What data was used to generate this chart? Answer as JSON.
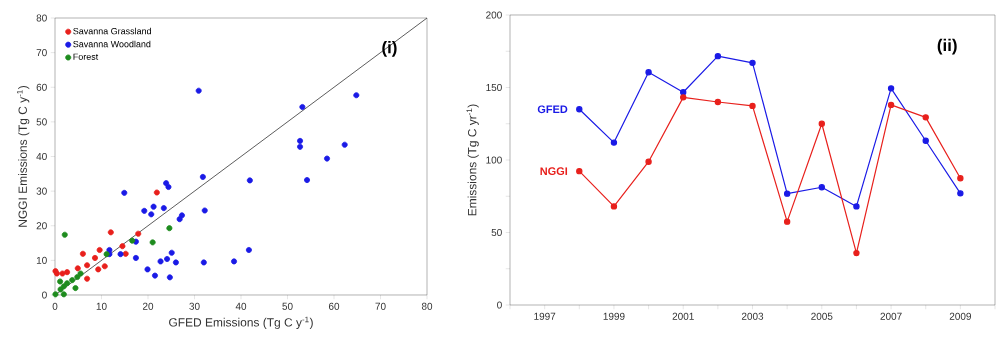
{
  "chart_data": [
    {
      "type": "scatter",
      "xlabel": "GFED Emissions (Tg C y$^{-1}$)",
      "ylabel": "NGGI Emissions (Tg C y$^{-1}$)",
      "annotations": [
        "(i)"
      ],
      "xlim": [
        0,
        80
      ],
      "ylim": [
        0,
        80
      ],
      "xticks": [
        0,
        10,
        20,
        30,
        40,
        50,
        60,
        70,
        80
      ],
      "yticks": [
        0,
        10,
        20,
        30,
        40,
        50,
        60,
        70,
        80
      ],
      "legend": "top left",
      "marker": "circle",
      "series": [
        {
          "name": "Savanna Grassland",
          "color": "#e8201c",
          "x": [
            0.1,
            1.6,
            2.6,
            0.4,
            4.9,
            6.0,
            6.9,
            6.9,
            8.6,
            9.6,
            9.3,
            10.7,
            12.0,
            14.5,
            15.2,
            17.9,
            21.9
          ],
          "values": [
            6.9,
            6.2,
            6.6,
            6.2,
            7.7,
            11.9,
            8.6,
            4.7,
            10.7,
            13.0,
            7.4,
            8.3,
            18.1,
            14.1,
            11.9,
            17.7,
            29.6
          ]
        },
        {
          "name": "Savanna Woodland",
          "color": "#1a1ae6",
          "x": [
            30.9,
            64.8,
            53.2,
            52.7,
            52.7,
            62.3,
            58.5,
            54.2,
            41.9,
            31.8,
            23.9,
            24.4,
            14.9,
            21.2,
            23.4,
            19.2,
            20.7,
            32.2,
            27.3,
            26.8,
            11.7,
            11.7,
            14.1,
            17.4,
            17.4,
            19.9,
            21.5,
            24.7,
            22.7,
            24.1,
            25.1,
            26.0,
            32.0,
            38.5,
            41.7
          ],
          "values": [
            59.0,
            57.7,
            54.3,
            44.5,
            42.8,
            43.4,
            39.4,
            33.2,
            33.1,
            34.1,
            32.3,
            31.2,
            29.5,
            25.5,
            25.1,
            24.3,
            23.3,
            24.4,
            23.0,
            21.9,
            13.0,
            11.8,
            11.8,
            15.4,
            10.7,
            7.4,
            5.6,
            5.1,
            9.7,
            10.4,
            12.2,
            9.4,
            9.4,
            9.7,
            13.0
          ]
        },
        {
          "name": "Forest",
          "color": "#1e8c1e",
          "x": [
            2.1,
            24.6,
            21.0,
            16.6,
            11.1,
            1.2,
            1.9,
            2.6,
            3.7,
            4.8,
            5.5,
            4.4,
            1.9,
            1.1,
            0.1
          ],
          "values": [
            17.4,
            19.3,
            15.2,
            15.7,
            11.8,
            1.6,
            2.5,
            3.4,
            4.3,
            5.2,
            6.2,
            2.0,
            0.2,
            3.9,
            0.2
          ]
        },
        {
          "type": "line",
          "marker": "none",
          "color": "#333333",
          "x": [
            0,
            80
          ],
          "values": [
            0,
            80
          ]
        }
      ]
    },
    {
      "type": "line",
      "ylabel": "Emissions (Tg C yr$^{-1}$)",
      "annotations": [
        "(ii)"
      ],
      "x": [
        1998,
        1999,
        2000,
        2001,
        2002,
        2003,
        2004,
        2005,
        2006,
        2007,
        2008,
        2009
      ],
      "xlim": [
        1996,
        2010
      ],
      "ylim": [
        0,
        200
      ],
      "xticks": [
        {
          "value": 1996,
          "label": null
        },
        1997,
        {
          "value": 1998,
          "label": null
        },
        1999,
        {
          "value": 2000,
          "label": null
        },
        2001,
        {
          "value": 2002,
          "label": null
        },
        2003,
        {
          "value": 2004,
          "label": null
        },
        2005,
        {
          "value": 2006,
          "label": null
        },
        2007,
        {
          "value": 2008,
          "label": null
        },
        2009,
        {
          "value": 2010,
          "label": null
        }
      ],
      "yticks": [
        0,
        {
          "value": 25,
          "label": null
        },
        50,
        {
          "value": 75,
          "label": null
        },
        100,
        {
          "value": 125,
          "label": null
        },
        150,
        {
          "value": 175,
          "label": null
        },
        200
      ],
      "marker": "circle",
      "series": [
        {
          "name": "GFED",
          "color": "#1a1ae6",
          "values": [
            135,
            112,
            160.5,
            146.7,
            171.6,
            167,
            76.8,
            81.2,
            68,
            149.4,
            113.3,
            77
          ]
        },
        {
          "name": "NGGI",
          "color": "#e8201c",
          "values": [
            92.3,
            68,
            98.8,
            143.2,
            140,
            137.3,
            57.5,
            125,
            35.8,
            138,
            129.4,
            87.4
          ]
        }
      ]
    }
  ]
}
